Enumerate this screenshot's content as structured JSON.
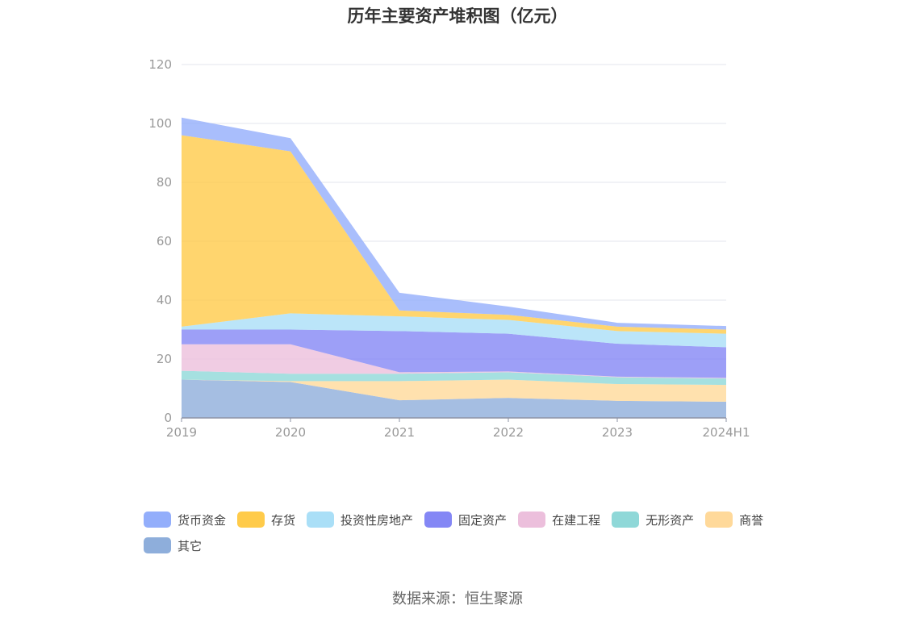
{
  "chart_data": {
    "type": "area",
    "stacked": true,
    "title": "历年主要资产堆积图（亿元）",
    "categories": [
      "2019",
      "2020",
      "2021",
      "2022",
      "2023",
      "2024H1"
    ],
    "y_ticks": [
      "0",
      "20",
      "40",
      "60",
      "80",
      "100",
      "120"
    ],
    "ylim": [
      0,
      120
    ],
    "grid": true,
    "legend_position": "bottom",
    "series": [
      {
        "name": "其它",
        "color": "#8eaedb",
        "values": [
          13.0,
          12.2,
          6.0,
          6.8,
          5.8,
          5.5
        ]
      },
      {
        "name": "商誉",
        "color": "#ffd99a",
        "values": [
          0.0,
          0.3,
          6.5,
          6.2,
          5.7,
          5.7
        ]
      },
      {
        "name": "无形资产",
        "color": "#8fd8d8",
        "values": [
          3.0,
          2.5,
          2.5,
          2.5,
          2.3,
          2.2
        ]
      },
      {
        "name": "在建工程",
        "color": "#ecbfdc",
        "values": [
          9.0,
          10.0,
          0.5,
          0.3,
          0.2,
          0.2
        ]
      },
      {
        "name": "固定资产",
        "color": "#8487f5",
        "values": [
          5.0,
          5.0,
          14.0,
          12.8,
          11.2,
          10.4
        ]
      },
      {
        "name": "投资性房地产",
        "color": "#aadff7",
        "values": [
          1.0,
          5.5,
          5.0,
          4.7,
          4.3,
          4.6
        ]
      },
      {
        "name": "存货",
        "color": "#ffcb4a",
        "values": [
          65.0,
          55.0,
          2.0,
          1.7,
          1.5,
          1.4
        ]
      },
      {
        "name": "货币资金",
        "color": "#93aefb",
        "values": [
          6.0,
          4.5,
          6.0,
          2.8,
          1.3,
          1.2
        ]
      }
    ],
    "legend_order": [
      "货币资金",
      "存货",
      "投资性房地产",
      "固定资产",
      "在建工程",
      "无形资产",
      "商誉",
      "其它"
    ]
  },
  "source": "数据来源：恒生聚源"
}
